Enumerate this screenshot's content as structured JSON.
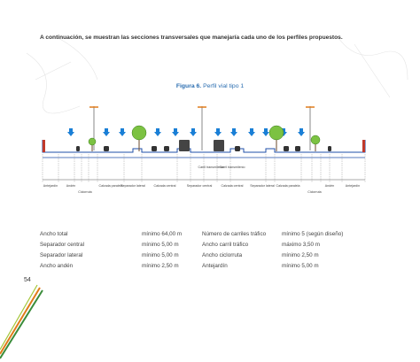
{
  "intro": "A continuación, se muestran las secciones transversales que manejaría cada uno de los perfiles propuestos.",
  "figure": {
    "label": "Figura 6.",
    "caption": "Perfil vial tipo 1",
    "zones": [
      "Antejardín",
      "Andén",
      "Ciclorruta",
      "Calzada paralela",
      "Separador lateral",
      "Calzada central",
      "Separador central",
      "Calzada central",
      "Separador lateral",
      "Calzada paralela",
      "Ciclorruta",
      "Andén",
      "Antejardín"
    ],
    "lanes": [
      "Carril transmilenio",
      "Carril transmilenio"
    ]
  },
  "table": {
    "rows": [
      [
        "Ancho total",
        "mínimo 64,00 m",
        "Número de carriles tráfico",
        "mínimo 5 (según diseño)"
      ],
      [
        "Separador central",
        "mínimo 5,00 m",
        "Ancho carril tráfico",
        "máximo 3,50 m"
      ],
      [
        "Separador lateral",
        "mínimo 5,00 m",
        "Ancho ciclorruta",
        "mínimo 2,50 m"
      ],
      [
        "Ancho andén",
        "mínimo 2,50 m",
        "Antejardín",
        "mínimo 5,00 m"
      ]
    ]
  },
  "page_number": "54"
}
